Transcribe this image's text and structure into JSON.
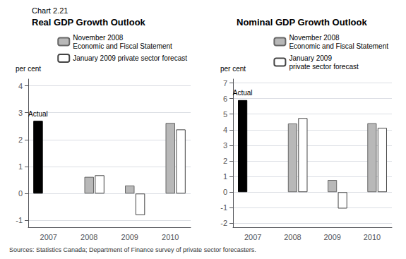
{
  "chart_label": "Chart 2.21",
  "source": "Sources: Statistics Canada; Department of Finance survey of private sector forecasters.",
  "chart_data": [
    {
      "type": "bar",
      "title": "Real GDP Growth Outlook",
      "ylabel": "per cent",
      "categories": [
        "2007",
        "2008",
        "2009",
        "2010"
      ],
      "series": [
        {
          "color": "#000000",
          "values": [
            2.7,
            null,
            null,
            null
          ]
        },
        {
          "name": "November 2008\nEconomic and Fiscal Statement",
          "color": "#b8b8b8",
          "values": [
            null,
            0.62,
            0.3,
            2.62
          ]
        },
        {
          "name": "January 2009 private sector forecast",
          "color": "#ffffff",
          "values": [
            null,
            0.68,
            -0.8,
            2.38
          ]
        }
      ],
      "annotations": [
        {
          "text": "Actual",
          "x": "2007",
          "y": 2.7
        }
      ],
      "ylim": [
        -1.25,
        4.25
      ],
      "yticks": [
        -1,
        0,
        1,
        2,
        3,
        4
      ],
      "grid": true,
      "legend": "upper right"
    },
    {
      "type": "bar",
      "title": "Nominal GDP Growth Outlook",
      "ylabel": "per cent",
      "categories": [
        "2007",
        "2008",
        "2009",
        "2010"
      ],
      "series": [
        {
          "color": "#000000",
          "values": [
            5.9,
            null,
            null,
            null
          ]
        },
        {
          "name": "November 2008\nEconomic and Fiscal Statement",
          "color": "#b8b8b8",
          "values": [
            null,
            4.4,
            0.78,
            4.42
          ]
        },
        {
          "name": "January 2009\nprivate sector forecast",
          "color": "#ffffff",
          "values": [
            null,
            4.75,
            -1.05,
            4.12
          ]
        }
      ],
      "annotations": [
        {
          "text": "Actual",
          "x": "2007",
          "y": 5.9
        }
      ],
      "ylim": [
        -2.25,
        7.25
      ],
      "yticks": [
        -2,
        -1,
        0,
        1,
        2,
        3,
        4,
        5,
        6,
        7
      ],
      "grid": true,
      "legend": "upper right"
    }
  ]
}
